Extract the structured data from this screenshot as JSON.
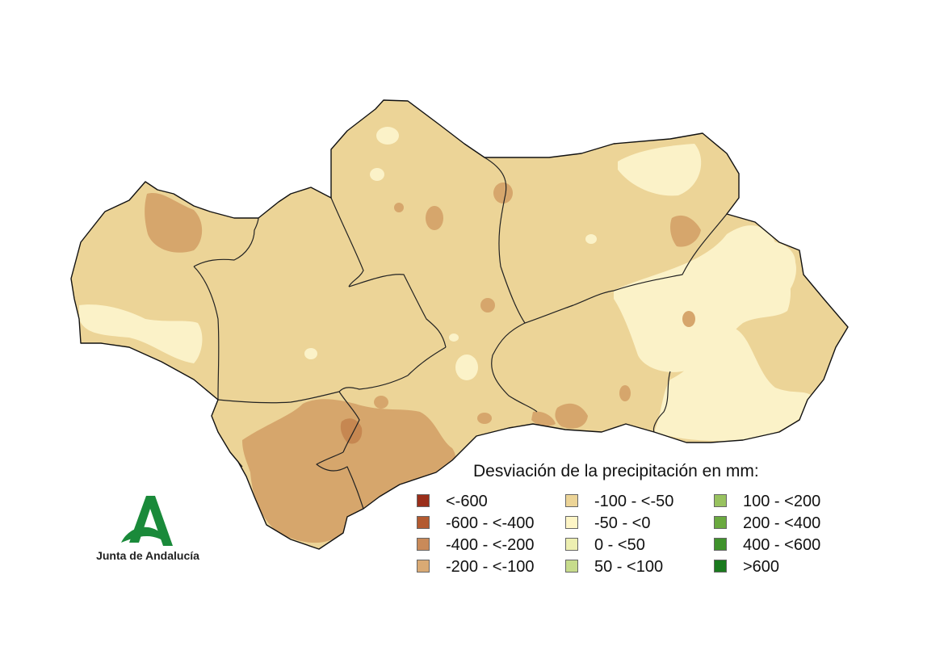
{
  "map": {
    "region": "Andalucía",
    "colors": {
      "background": "#ffffff",
      "border": "#222222",
      "base": "#ecd497",
      "light": "#fbf2c8",
      "medium": "#d6a66c",
      "dark": "#c68751"
    }
  },
  "legend": {
    "title": "Desviación de la precipitación en mm:",
    "items": [
      {
        "label": "<-600",
        "color": "#9a2e1a"
      },
      {
        "label": "-600 - <-400",
        "color": "#b35a30"
      },
      {
        "label": "-400 - <-200",
        "color": "#c98a59"
      },
      {
        "label": "-200 - <-100",
        "color": "#d9aa74"
      },
      {
        "label": "-100 - <-50",
        "color": "#ecd497"
      },
      {
        "label": "-50 - <0",
        "color": "#fdf5c6"
      },
      {
        "label": "0 - <50",
        "color": "#edefb1"
      },
      {
        "label": "50 - <100",
        "color": "#c7dc8c"
      },
      {
        "label": "100 - <200",
        "color": "#98c25f"
      },
      {
        "label": "200 - <400",
        "color": "#6aa93f"
      },
      {
        "label": "400 - <600",
        "color": "#3f922c"
      },
      {
        "label": ">600",
        "color": "#1a7a1e"
      }
    ]
  },
  "logo": {
    "text": "Junta de Andalucía",
    "color": "#1a8a3a"
  }
}
